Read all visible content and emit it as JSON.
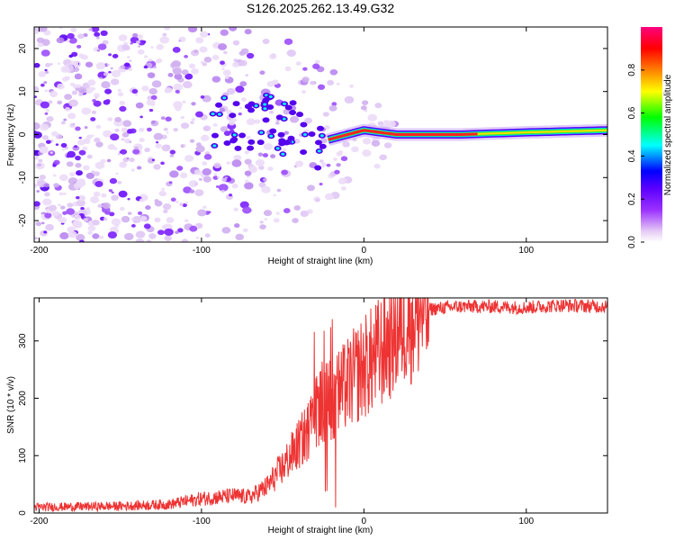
{
  "title": "S126.2025.262.13.49.G32",
  "chart_data": [
    {
      "type": "heatmap",
      "name": "spectrogram",
      "xlabel": "Height of straight line (km)",
      "ylabel": "Frequency (Hz)",
      "xlim": [
        -203,
        150
      ],
      "ylim": [
        -25,
        25
      ],
      "xticks": [
        -200,
        -100,
        0,
        100
      ],
      "xtick_labels": [
        "-200",
        "-100",
        "0",
        "100"
      ],
      "yticks": [
        -20,
        -10,
        0,
        10,
        20
      ],
      "ytick_labels": [
        "-20",
        "-10",
        "0",
        "10",
        "20"
      ],
      "ridge": [
        {
          "x": -90,
          "y": 4
        },
        {
          "x": -75,
          "y": 2
        },
        {
          "x": -60,
          "y": 4
        },
        {
          "x": -50,
          "y": 1
        },
        {
          "x": -40,
          "y": 3
        },
        {
          "x": -30,
          "y": -2
        },
        {
          "x": -20,
          "y": -1
        },
        {
          "x": -10,
          "y": 0
        },
        {
          "x": 0,
          "y": 1
        },
        {
          "x": 20,
          "y": 0
        },
        {
          "x": 60,
          "y": 0
        },
        {
          "x": 100,
          "y": 0.5
        },
        {
          "x": 150,
          "y": 1
        }
      ],
      "colorbar": {
        "label": "Normalized spectral amplitude",
        "range": [
          0,
          1
        ],
        "ticks": [
          0.0,
          0.2,
          0.4,
          0.6,
          0.8
        ],
        "tick_labels": [
          "0.0",
          "0.2",
          "0.4",
          "0.6",
          "0.8"
        ],
        "colors": [
          "#ffffff",
          "#e6ccf5",
          "#9b30ff",
          "#5a00ff",
          "#0000ff",
          "#00ffff",
          "#00ff00",
          "#ffff00",
          "#ff8000",
          "#ff0000",
          "#ff0080"
        ]
      }
    },
    {
      "type": "line",
      "name": "snr",
      "xlabel": "Height of straight line (km)",
      "ylabel": "SNR (10 * v/v)",
      "xlim": [
        -203,
        150
      ],
      "ylim": [
        0,
        375
      ],
      "xticks": [
        -200,
        -100,
        0,
        100
      ],
      "xtick_labels": [
        "-200",
        "-100",
        "0",
        "100"
      ],
      "yticks": [
        0,
        100,
        200,
        300
      ],
      "ytick_labels": [
        "0",
        "100",
        "200",
        "300"
      ],
      "color": "#ee3333",
      "x": [
        -203,
        -150,
        -120,
        -100,
        -80,
        -70,
        -60,
        -50,
        -40,
        -35,
        -30,
        -25,
        -20,
        -15,
        -10,
        -5,
        0,
        5,
        10,
        15,
        20,
        25,
        30,
        40,
        50,
        60,
        80,
        100,
        120,
        150
      ],
      "y": [
        10,
        12,
        15,
        25,
        30,
        28,
        45,
        80,
        120,
        140,
        180,
        190,
        200,
        210,
        225,
        240,
        255,
        265,
        280,
        300,
        320,
        340,
        350,
        355,
        358,
        360,
        360,
        358,
        362,
        360
      ]
    }
  ]
}
